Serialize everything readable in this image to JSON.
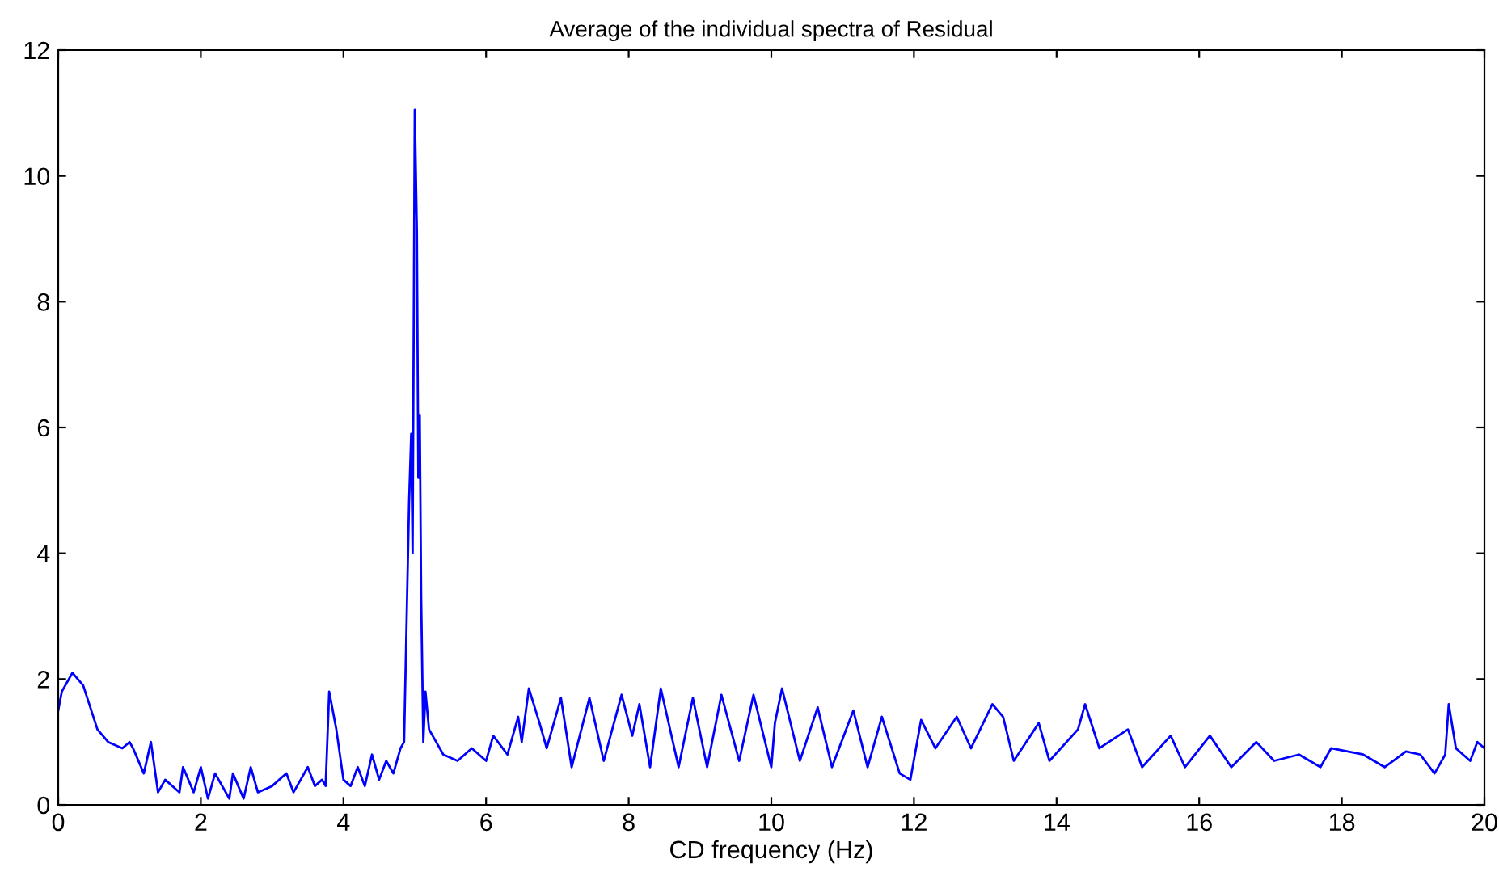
{
  "chart_data": {
    "type": "line",
    "title": "Average of the individual spectra of Residual",
    "xlabel": "CD frequency (Hz)",
    "x": [
      0,
      0.05,
      0.2,
      0.35,
      0.55,
      0.7,
      0.9,
      1.0,
      1.05,
      1.2,
      1.3,
      1.4,
      1.5,
      1.7,
      1.75,
      1.9,
      2.0,
      2.1,
      2.2,
      2.4,
      2.45,
      2.6,
      2.7,
      2.8,
      3.0,
      3.2,
      3.3,
      3.5,
      3.6,
      3.7,
      3.75,
      3.8,
      3.9,
      4.0,
      4.1,
      4.2,
      4.3,
      4.4,
      4.5,
      4.6,
      4.7,
      4.8,
      4.85,
      4.92,
      4.95,
      4.97,
      5.0,
      5.03,
      5.05,
      5.07,
      5.09,
      5.12,
      5.15,
      5.2,
      5.3,
      5.4,
      5.6,
      5.8,
      6.0,
      6.1,
      6.3,
      6.45,
      6.5,
      6.6,
      6.75,
      6.85,
      7.05,
      7.2,
      7.45,
      7.65,
      7.9,
      8.05,
      8.15,
      8.3,
      8.45,
      8.7,
      8.9,
      9.1,
      9.3,
      9.55,
      9.75,
      10.0,
      10.05,
      10.15,
      10.4,
      10.65,
      10.85,
      11.15,
      11.35,
      11.55,
      11.8,
      11.95,
      12.1,
      12.3,
      12.6,
      12.8,
      13.1,
      13.25,
      13.4,
      13.75,
      13.9,
      14.3,
      14.4,
      14.6,
      15.0,
      15.2,
      15.6,
      15.8,
      16.15,
      16.45,
      16.8,
      17.05,
      17.4,
      17.7,
      17.85,
      18.3,
      18.6,
      18.9,
      19.1,
      19.3,
      19.45,
      19.5,
      19.6,
      19.8,
      19.9,
      20
    ],
    "values": [
      1.5,
      1.8,
      2.1,
      1.9,
      1.2,
      1.0,
      0.9,
      1.0,
      0.9,
      0.5,
      1.0,
      0.2,
      0.4,
      0.2,
      0.6,
      0.2,
      0.6,
      0.1,
      0.5,
      0.1,
      0.5,
      0.1,
      0.6,
      0.2,
      0.3,
      0.5,
      0.2,
      0.6,
      0.3,
      0.4,
      0.3,
      1.8,
      1.2,
      0.4,
      0.3,
      0.6,
      0.3,
      0.8,
      0.4,
      0.7,
      0.5,
      0.9,
      1.0,
      4.8,
      5.9,
      4.0,
      11.05,
      9.1,
      5.2,
      6.2,
      3.3,
      1.0,
      1.8,
      1.2,
      1.0,
      0.8,
      0.7,
      0.9,
      0.7,
      1.1,
      0.8,
      1.4,
      1.0,
      1.85,
      1.3,
      0.9,
      1.7,
      0.6,
      1.7,
      0.7,
      1.75,
      1.1,
      1.6,
      0.6,
      1.85,
      0.6,
      1.7,
      0.6,
      1.75,
      0.7,
      1.75,
      0.6,
      1.3,
      1.85,
      0.7,
      1.55,
      0.6,
      1.5,
      0.6,
      1.4,
      0.5,
      0.4,
      1.35,
      0.9,
      1.4,
      0.9,
      1.6,
      1.4,
      0.7,
      1.3,
      0.7,
      1.2,
      1.6,
      0.9,
      1.2,
      0.6,
      1.1,
      0.6,
      1.1,
      0.6,
      1.0,
      0.7,
      0.8,
      0.6,
      0.9,
      0.8,
      0.6,
      0.85,
      0.8,
      0.5,
      0.8,
      1.6,
      0.9,
      0.7,
      1.0,
      0.9
    ],
    "color": "#0000ff",
    "xlim": [
      0,
      20
    ],
    "ylim": [
      0,
      12
    ],
    "xticks": [
      0,
      2,
      4,
      6,
      8,
      10,
      12,
      14,
      16,
      18,
      20
    ],
    "yticks": [
      0,
      2,
      4,
      6,
      8,
      10,
      12
    ],
    "grid": false,
    "legend": false
  }
}
